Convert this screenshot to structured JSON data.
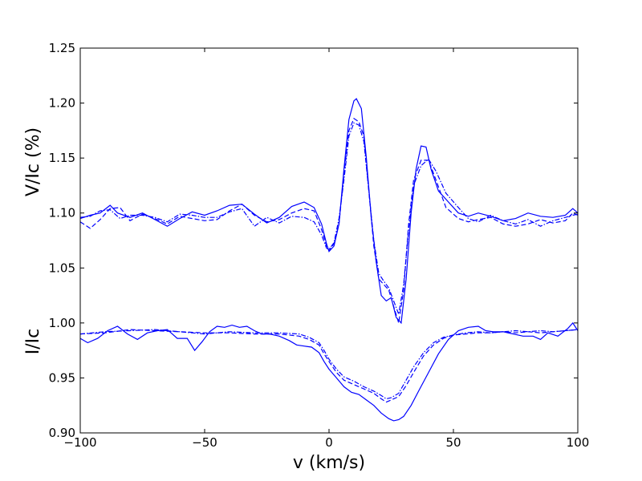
{
  "chart_data": {
    "type": "line",
    "title": "",
    "xlabel": "v (km/s)",
    "ylabel_upper": "V/Ic (%)",
    "ylabel_lower": "I/Ic",
    "xlim": [
      -100,
      100
    ],
    "ylim": [
      0.9,
      1.25
    ],
    "x_ticks": [
      -100,
      -50,
      0,
      50,
      100
    ],
    "x_tick_labels": [
      "−100",
      "−50",
      "0",
      "50",
      "100"
    ],
    "y_ticks": [
      0.9,
      0.95,
      1.0,
      1.05,
      1.1,
      1.15,
      1.2,
      1.25
    ],
    "y_tick_labels": [
      "0.90",
      "0.95",
      "1.00",
      "1.05",
      "1.10",
      "1.15",
      "1.20",
      "1.25"
    ],
    "grid": false,
    "legend": "none",
    "line_color": "#0000ff",
    "series": [
      {
        "group": "V",
        "style": "solid",
        "points": [
          [
            -100,
            1.095
          ],
          [
            -96,
            1.098
          ],
          [
            -92,
            1.1
          ],
          [
            -88,
            1.107
          ],
          [
            -85,
            1.1
          ],
          [
            -80,
            1.096
          ],
          [
            -75,
            1.1
          ],
          [
            -70,
            1.094
          ],
          [
            -65,
            1.088
          ],
          [
            -60,
            1.095
          ],
          [
            -55,
            1.101
          ],
          [
            -50,
            1.098
          ],
          [
            -45,
            1.102
          ],
          [
            -40,
            1.107
          ],
          [
            -35,
            1.108
          ],
          [
            -30,
            1.099
          ],
          [
            -25,
            1.091
          ],
          [
            -20,
            1.096
          ],
          [
            -15,
            1.106
          ],
          [
            -10,
            1.11
          ],
          [
            -6,
            1.105
          ],
          [
            -3,
            1.09
          ],
          [
            -1,
            1.072
          ],
          [
            0,
            1.065
          ],
          [
            2,
            1.07
          ],
          [
            4,
            1.09
          ],
          [
            6,
            1.14
          ],
          [
            8,
            1.185
          ],
          [
            10,
            1.202
          ],
          [
            11,
            1.204
          ],
          [
            13,
            1.195
          ],
          [
            15,
            1.15
          ],
          [
            17,
            1.095
          ],
          [
            19,
            1.055
          ],
          [
            21,
            1.025
          ],
          [
            23,
            1.02
          ],
          [
            25,
            1.023
          ],
          [
            27,
            1.005
          ],
          [
            29,
            1.0
          ],
          [
            31,
            1.04
          ],
          [
            33,
            1.1
          ],
          [
            35,
            1.14
          ],
          [
            37,
            1.161
          ],
          [
            39,
            1.16
          ],
          [
            41,
            1.14
          ],
          [
            44,
            1.12
          ],
          [
            48,
            1.11
          ],
          [
            52,
            1.1
          ],
          [
            56,
            1.097
          ],
          [
            60,
            1.1
          ],
          [
            65,
            1.097
          ],
          [
            70,
            1.093
          ],
          [
            75,
            1.095
          ],
          [
            80,
            1.1
          ],
          [
            85,
            1.097
          ],
          [
            90,
            1.096
          ],
          [
            95,
            1.098
          ],
          [
            98,
            1.104
          ],
          [
            100,
            1.1
          ]
        ]
      },
      {
        "group": "V",
        "style": "dashed",
        "points": [
          [
            -100,
            1.092
          ],
          [
            -96,
            1.086
          ],
          [
            -92,
            1.094
          ],
          [
            -88,
            1.104
          ],
          [
            -84,
            1.105
          ],
          [
            -80,
            1.093
          ],
          [
            -75,
            1.099
          ],
          [
            -70,
            1.095
          ],
          [
            -65,
            1.09
          ],
          [
            -60,
            1.097
          ],
          [
            -55,
            1.095
          ],
          [
            -50,
            1.093
          ],
          [
            -45,
            1.094
          ],
          [
            -40,
            1.102
          ],
          [
            -35,
            1.108
          ],
          [
            -30,
            1.098
          ],
          [
            -25,
            1.092
          ],
          [
            -20,
            1.094
          ],
          [
            -15,
            1.1
          ],
          [
            -10,
            1.104
          ],
          [
            -6,
            1.102
          ],
          [
            -3,
            1.085
          ],
          [
            -1,
            1.07
          ],
          [
            0,
            1.066
          ],
          [
            2,
            1.072
          ],
          [
            4,
            1.09
          ],
          [
            6,
            1.135
          ],
          [
            8,
            1.175
          ],
          [
            10,
            1.186
          ],
          [
            12,
            1.183
          ],
          [
            14,
            1.17
          ],
          [
            16,
            1.12
          ],
          [
            18,
            1.07
          ],
          [
            20,
            1.04
          ],
          [
            22,
            1.035
          ],
          [
            24,
            1.03
          ],
          [
            26,
            1.015
          ],
          [
            28,
            1.0
          ],
          [
            30,
            1.03
          ],
          [
            32,
            1.09
          ],
          [
            34,
            1.13
          ],
          [
            37,
            1.148
          ],
          [
            40,
            1.148
          ],
          [
            43,
            1.13
          ],
          [
            47,
            1.105
          ],
          [
            52,
            1.095
          ],
          [
            56,
            1.092
          ],
          [
            60,
            1.094
          ],
          [
            65,
            1.096
          ],
          [
            70,
            1.09
          ],
          [
            75,
            1.088
          ],
          [
            80,
            1.09
          ],
          [
            85,
            1.094
          ],
          [
            90,
            1.091
          ],
          [
            95,
            1.093
          ],
          [
            98,
            1.1
          ],
          [
            100,
            1.098
          ]
        ]
      },
      {
        "group": "V",
        "style": "dashdot",
        "points": [
          [
            -100,
            1.096
          ],
          [
            -96,
            1.097
          ],
          [
            -92,
            1.102
          ],
          [
            -88,
            1.103
          ],
          [
            -84,
            1.095
          ],
          [
            -80,
            1.098
          ],
          [
            -75,
            1.098
          ],
          [
            -70,
            1.096
          ],
          [
            -65,
            1.092
          ],
          [
            -60,
            1.099
          ],
          [
            -55,
            1.098
          ],
          [
            -50,
            1.096
          ],
          [
            -45,
            1.096
          ],
          [
            -40,
            1.101
          ],
          [
            -35,
            1.104
          ],
          [
            -30,
            1.088
          ],
          [
            -25,
            1.096
          ],
          [
            -20,
            1.091
          ],
          [
            -15,
            1.097
          ],
          [
            -10,
            1.096
          ],
          [
            -6,
            1.092
          ],
          [
            -3,
            1.08
          ],
          [
            -1,
            1.068
          ],
          [
            0,
            1.067
          ],
          [
            2,
            1.073
          ],
          [
            4,
            1.095
          ],
          [
            6,
            1.13
          ],
          [
            8,
            1.17
          ],
          [
            10,
            1.182
          ],
          [
            12,
            1.18
          ],
          [
            14,
            1.165
          ],
          [
            16,
            1.12
          ],
          [
            18,
            1.075
          ],
          [
            20,
            1.045
          ],
          [
            22,
            1.038
          ],
          [
            24,
            1.032
          ],
          [
            26,
            1.02
          ],
          [
            28,
            1.008
          ],
          [
            30,
            1.035
          ],
          [
            32,
            1.085
          ],
          [
            34,
            1.125
          ],
          [
            37,
            1.143
          ],
          [
            40,
            1.149
          ],
          [
            43,
            1.138
          ],
          [
            47,
            1.118
          ],
          [
            52,
            1.105
          ],
          [
            56,
            1.095
          ],
          [
            60,
            1.092
          ],
          [
            65,
            1.098
          ],
          [
            70,
            1.093
          ],
          [
            75,
            1.09
          ],
          [
            80,
            1.094
          ],
          [
            85,
            1.088
          ],
          [
            90,
            1.093
          ],
          [
            95,
            1.096
          ],
          [
            98,
            1.098
          ],
          [
            100,
            1.099
          ]
        ]
      },
      {
        "group": "I",
        "style": "solid",
        "points": [
          [
            -100,
            0.986
          ],
          [
            -97,
            0.982
          ],
          [
            -93,
            0.986
          ],
          [
            -89,
            0.993
          ],
          [
            -85,
            0.997
          ],
          [
            -81,
            0.99
          ],
          [
            -77,
            0.985
          ],
          [
            -73,
            0.991
          ],
          [
            -69,
            0.993
          ],
          [
            -65,
            0.994
          ],
          [
            -61,
            0.986
          ],
          [
            -57,
            0.986
          ],
          [
            -54,
            0.975
          ],
          [
            -51,
            0.983
          ],
          [
            -48,
            0.992
          ],
          [
            -45,
            0.997
          ],
          [
            -42,
            0.996
          ],
          [
            -39,
            0.998
          ],
          [
            -36,
            0.996
          ],
          [
            -33,
            0.997
          ],
          [
            -30,
            0.993
          ],
          [
            -27,
            0.99
          ],
          [
            -24,
            0.99
          ],
          [
            -20,
            0.988
          ],
          [
            -16,
            0.984
          ],
          [
            -13,
            0.98
          ],
          [
            -10,
            0.979
          ],
          [
            -7,
            0.978
          ],
          [
            -4,
            0.973
          ],
          [
            -2,
            0.965
          ],
          [
            0,
            0.958
          ],
          [
            3,
            0.95
          ],
          [
            6,
            0.942
          ],
          [
            9,
            0.937
          ],
          [
            12,
            0.935
          ],
          [
            15,
            0.93
          ],
          [
            18,
            0.925
          ],
          [
            21,
            0.918
          ],
          [
            24,
            0.913
          ],
          [
            26,
            0.911
          ],
          [
            28,
            0.912
          ],
          [
            30,
            0.915
          ],
          [
            33,
            0.925
          ],
          [
            36,
            0.938
          ],
          [
            40,
            0.955
          ],
          [
            44,
            0.972
          ],
          [
            48,
            0.985
          ],
          [
            52,
            0.993
          ],
          [
            56,
            0.996
          ],
          [
            60,
            0.997
          ],
          [
            63,
            0.993
          ],
          [
            66,
            0.992
          ],
          [
            70,
            0.992
          ],
          [
            74,
            0.99
          ],
          [
            78,
            0.988
          ],
          [
            82,
            0.988
          ],
          [
            85,
            0.985
          ],
          [
            88,
            0.991
          ],
          [
            92,
            0.988
          ],
          [
            96,
            0.995
          ],
          [
            98,
            1.0
          ],
          [
            100,
            0.993
          ]
        ]
      },
      {
        "group": "I",
        "style": "dashed",
        "points": [
          [
            -100,
            0.99
          ],
          [
            -90,
            0.991
          ],
          [
            -80,
            0.994
          ],
          [
            -70,
            0.993
          ],
          [
            -60,
            0.992
          ],
          [
            -50,
            0.991
          ],
          [
            -40,
            0.991
          ],
          [
            -30,
            0.99
          ],
          [
            -20,
            0.99
          ],
          [
            -12,
            0.988
          ],
          [
            -8,
            0.985
          ],
          [
            -4,
            0.98
          ],
          [
            -2,
            0.972
          ],
          [
            0,
            0.965
          ],
          [
            3,
            0.955
          ],
          [
            6,
            0.948
          ],
          [
            10,
            0.944
          ],
          [
            14,
            0.94
          ],
          [
            18,
            0.936
          ],
          [
            21,
            0.931
          ],
          [
            23,
            0.928
          ],
          [
            25,
            0.93
          ],
          [
            28,
            0.933
          ],
          [
            31,
            0.943
          ],
          [
            34,
            0.955
          ],
          [
            38,
            0.97
          ],
          [
            42,
            0.98
          ],
          [
            46,
            0.986
          ],
          [
            50,
            0.989
          ],
          [
            55,
            0.99
          ],
          [
            60,
            0.991
          ],
          [
            65,
            0.991
          ],
          [
            70,
            0.992
          ],
          [
            75,
            0.991
          ],
          [
            80,
            0.992
          ],
          [
            85,
            0.991
          ],
          [
            90,
            0.992
          ],
          [
            95,
            0.993
          ],
          [
            100,
            0.994
          ]
        ]
      },
      {
        "group": "I",
        "style": "dashdot",
        "points": [
          [
            -100,
            0.99
          ],
          [
            -90,
            0.992
          ],
          [
            -80,
            0.993
          ],
          [
            -70,
            0.994
          ],
          [
            -60,
            0.992
          ],
          [
            -50,
            0.99
          ],
          [
            -40,
            0.992
          ],
          [
            -30,
            0.991
          ],
          [
            -20,
            0.991
          ],
          [
            -12,
            0.99
          ],
          [
            -8,
            0.987
          ],
          [
            -4,
            0.982
          ],
          [
            -2,
            0.975
          ],
          [
            0,
            0.967
          ],
          [
            3,
            0.958
          ],
          [
            6,
            0.951
          ],
          [
            10,
            0.947
          ],
          [
            14,
            0.942
          ],
          [
            18,
            0.938
          ],
          [
            21,
            0.934
          ],
          [
            23,
            0.931
          ],
          [
            25,
            0.932
          ],
          [
            28,
            0.936
          ],
          [
            31,
            0.948
          ],
          [
            34,
            0.96
          ],
          [
            38,
            0.973
          ],
          [
            42,
            0.982
          ],
          [
            46,
            0.987
          ],
          [
            50,
            0.989
          ],
          [
            55,
            0.991
          ],
          [
            60,
            0.992
          ],
          [
            65,
            0.991
          ],
          [
            70,
            0.992
          ],
          [
            75,
            0.993
          ],
          [
            80,
            0.992
          ],
          [
            85,
            0.993
          ],
          [
            90,
            0.992
          ],
          [
            95,
            0.993
          ],
          [
            100,
            0.994
          ]
        ]
      }
    ]
  }
}
